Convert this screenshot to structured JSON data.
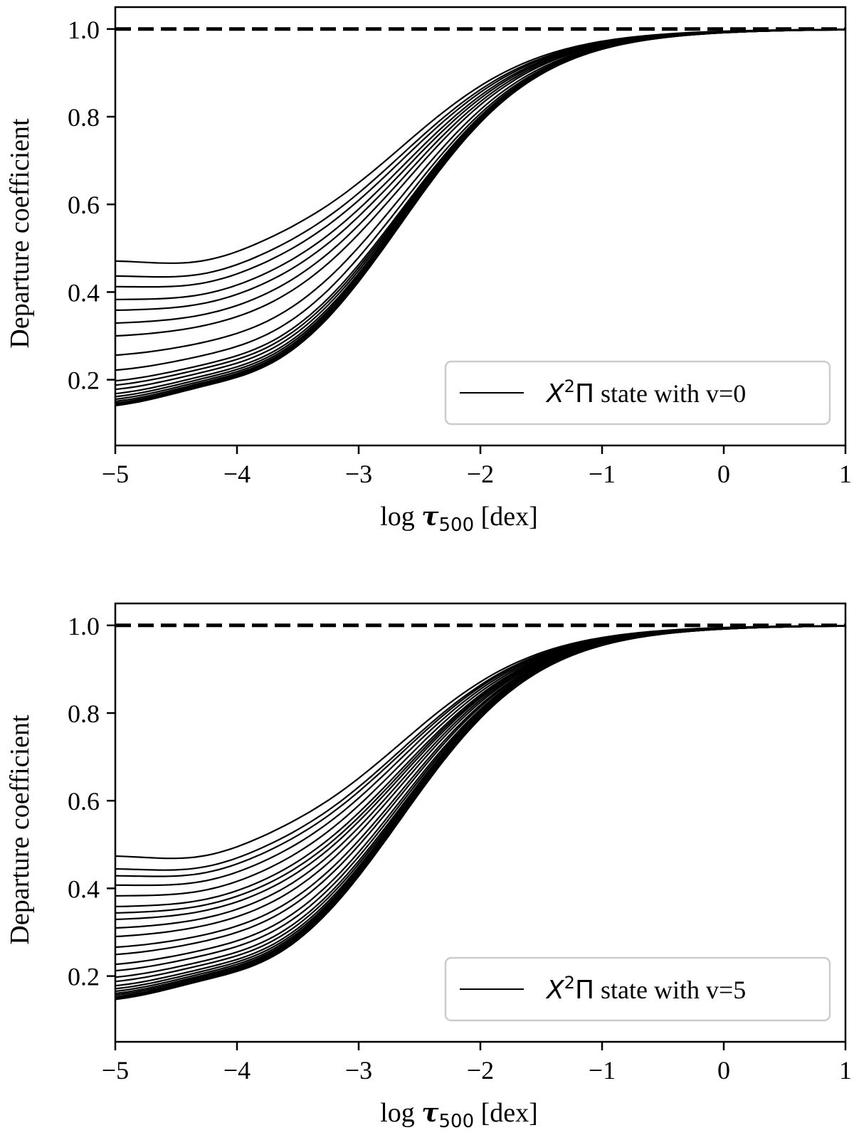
{
  "chart_data": [
    {
      "type": "line",
      "panel": "top",
      "xlabel": {
        "prefix": "log ",
        "symbol": "τ",
        "subscript": "500",
        "suffix": " [dex]"
      },
      "ylabel": "Departure coefficient",
      "xlim": [
        -5,
        1
      ],
      "ylim": [
        0.05,
        1.05
      ],
      "xticks": [
        -5,
        -4,
        -3,
        -2,
        -1,
        0,
        1
      ],
      "xtick_labels": [
        "−5",
        "−4",
        "−3",
        "−2",
        "−1",
        "0",
        "1"
      ],
      "yticks": [
        0.2,
        0.4,
        0.6,
        0.8,
        1.0
      ],
      "ytick_labels": [
        "0.2",
        "0.4",
        "0.6",
        "0.8",
        "1.0"
      ],
      "legend": {
        "position": "lower-right",
        "math": "X",
        "sup": "2",
        "greek": "Π",
        "text": " state with v=0"
      },
      "reference_line": {
        "y": 1.0,
        "style": "dashed"
      },
      "curve_family": {
        "description": "departure coefficients of successive rotational levels",
        "x": [
          -5.0,
          -4.8,
          -4.6,
          -4.4,
          -4.2,
          -4.0,
          -3.8,
          -3.6,
          -3.4,
          -3.2,
          -3.0,
          -2.8,
          -2.6,
          -2.4,
          -2.2,
          -2.0,
          -1.8,
          -1.6,
          -1.4,
          -1.2,
          -1.0,
          -0.8,
          -0.6,
          -0.4,
          -0.2,
          0.0,
          0.2,
          0.4,
          0.6,
          0.8,
          1.0
        ],
        "initial_values": [
          0.475,
          0.44,
          0.415,
          0.385,
          0.36,
          0.33,
          0.3,
          0.255,
          0.22,
          0.195,
          0.185,
          0.175,
          0.165,
          0.158,
          0.152,
          0.147,
          0.143,
          0.14,
          0.137
        ]
      }
    },
    {
      "type": "line",
      "panel": "bottom",
      "xlabel": {
        "prefix": "log ",
        "symbol": "τ",
        "subscript": "500",
        "suffix": " [dex]"
      },
      "ylabel": "Departure coefficient",
      "xlim": [
        -5,
        1
      ],
      "ylim": [
        0.05,
        1.05
      ],
      "xticks": [
        -5,
        -4,
        -3,
        -2,
        -1,
        0,
        1
      ],
      "xtick_labels": [
        "−5",
        "−4",
        "−3",
        "−2",
        "−1",
        "0",
        "1"
      ],
      "yticks": [
        0.2,
        0.4,
        0.6,
        0.8,
        1.0
      ],
      "ytick_labels": [
        "0.2",
        "0.4",
        "0.6",
        "0.8",
        "1.0"
      ],
      "legend": {
        "position": "lower-right",
        "math": "X",
        "sup": "2",
        "greek": "Π",
        "text": " state with v=5"
      },
      "reference_line": {
        "y": 1.0,
        "style": "dashed"
      },
      "curve_family": {
        "description": "departure coefficients of successive rotational levels",
        "x": [
          -5.0,
          -4.8,
          -4.6,
          -4.4,
          -4.2,
          -4.0,
          -3.8,
          -3.6,
          -3.4,
          -3.2,
          -3.0,
          -2.8,
          -2.6,
          -2.4,
          -2.2,
          -2.0,
          -1.8,
          -1.6,
          -1.4,
          -1.2,
          -1.0,
          -0.8,
          -0.6,
          -0.4,
          -0.2,
          0.0,
          0.2,
          0.4,
          0.6,
          0.8,
          1.0
        ],
        "initial_values": [
          0.478,
          0.448,
          0.432,
          0.41,
          0.385,
          0.36,
          0.345,
          0.33,
          0.31,
          0.29,
          0.265,
          0.248,
          0.225,
          0.21,
          0.195,
          0.185,
          0.175,
          0.168,
          0.162,
          0.157,
          0.153,
          0.149,
          0.146,
          0.143
        ]
      }
    }
  ]
}
